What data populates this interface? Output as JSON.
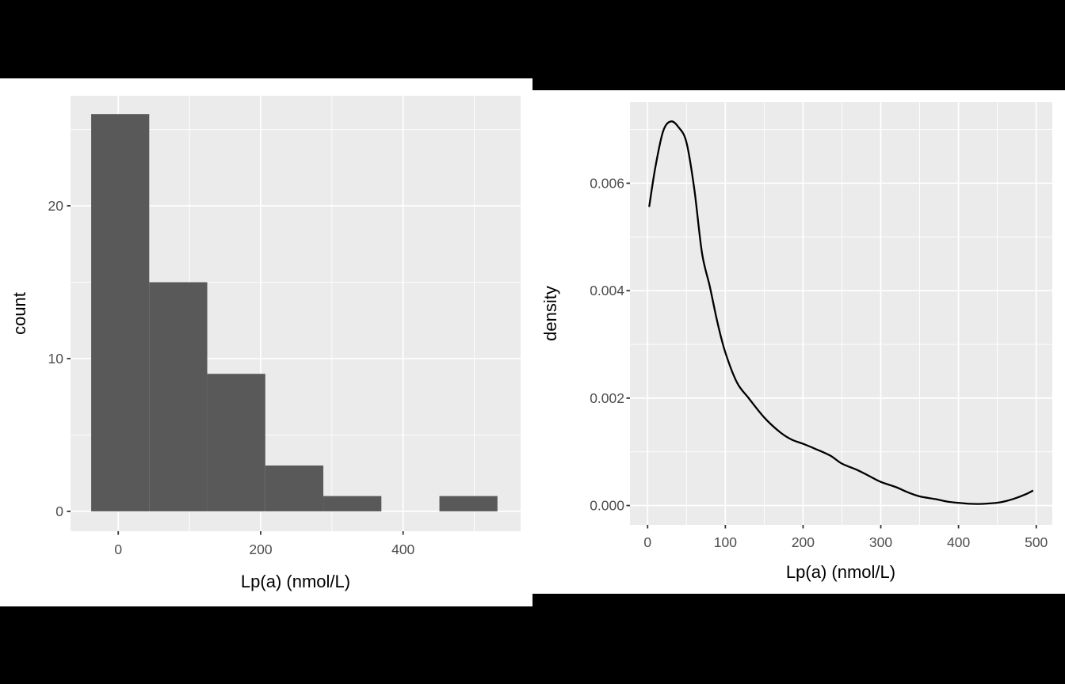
{
  "background_color": "#000000",
  "figure_background": "#FFFFFF",
  "style": {
    "panel_color": "#EBEBEB",
    "grid_color": "#FFFFFF",
    "tick_color": "#333333",
    "tick_label_color": "#4D4D4D",
    "title_color": "#000000"
  },
  "chart_data": [
    {
      "type": "bar",
      "subtype": "histogram",
      "title": "",
      "xlabel": "Lp(a) (nmol/L)",
      "ylabel": "count",
      "xlim": [
        -67,
        565
      ],
      "ylim": [
        -1.3,
        27.2
      ],
      "x_ticks": [
        0,
        200,
        400
      ],
      "x_tick_labels": [
        "0",
        "200",
        "400"
      ],
      "x_minor": [
        100,
        300,
        500
      ],
      "y_ticks": [
        0,
        10,
        20
      ],
      "y_tick_labels": [
        "0",
        "10",
        "20"
      ],
      "y_minor": [
        5,
        15,
        25
      ],
      "grid": true,
      "legend": "none",
      "bins": {
        "start": -38,
        "width": 81.5,
        "counts": [
          26,
          15,
          9,
          3,
          1,
          0,
          1
        ]
      },
      "bar_color": "#595959"
    },
    {
      "type": "line",
      "subtype": "density",
      "title": "",
      "xlabel": "Lp(a) (nmol/L)",
      "ylabel": "density",
      "xlim": [
        -22.7,
        520.7
      ],
      "ylim": [
        -0.00036,
        0.00751
      ],
      "x_ticks": [
        0,
        100,
        200,
        300,
        400,
        500
      ],
      "x_tick_labels": [
        "0",
        "100",
        "200",
        "300",
        "400",
        "500"
      ],
      "x_minor": [
        50,
        150,
        250,
        350,
        450
      ],
      "y_ticks": [
        0,
        0.002,
        0.004,
        0.006
      ],
      "y_tick_labels": [
        "0.000",
        "0.002",
        "0.004",
        "0.006"
      ],
      "y_minor": [
        0.001,
        0.003,
        0.005,
        0.007
      ],
      "grid": true,
      "legend": "none",
      "line_color": "#000000",
      "points": [
        [
          2,
          0.00556
        ],
        [
          10,
          0.0063
        ],
        [
          20,
          0.00697
        ],
        [
          30,
          0.00715
        ],
        [
          40,
          0.00704
        ],
        [
          50,
          0.00676
        ],
        [
          60,
          0.0059
        ],
        [
          70,
          0.0047
        ],
        [
          80,
          0.00408
        ],
        [
          90,
          0.0034
        ],
        [
          100,
          0.00285
        ],
        [
          115,
          0.00229
        ],
        [
          130,
          0.002
        ],
        [
          150,
          0.00164
        ],
        [
          170,
          0.00137
        ],
        [
          185,
          0.00123
        ],
        [
          200,
          0.00115
        ],
        [
          215,
          0.00106
        ],
        [
          235,
          0.00093
        ],
        [
          250,
          0.00078
        ],
        [
          270,
          0.00066
        ],
        [
          285,
          0.00055
        ],
        [
          300,
          0.00044
        ],
        [
          320,
          0.00034
        ],
        [
          335,
          0.000245
        ],
        [
          350,
          0.00017
        ],
        [
          370,
          0.00012
        ],
        [
          385,
          7.5e-05
        ],
        [
          400,
          5e-05
        ],
        [
          415,
          3.2e-05
        ],
        [
          430,
          3e-05
        ],
        [
          445,
          4.5e-05
        ],
        [
          455,
          6.4e-05
        ],
        [
          470,
          0.00012
        ],
        [
          488,
          0.00022
        ],
        [
          496,
          0.00028
        ]
      ]
    }
  ]
}
